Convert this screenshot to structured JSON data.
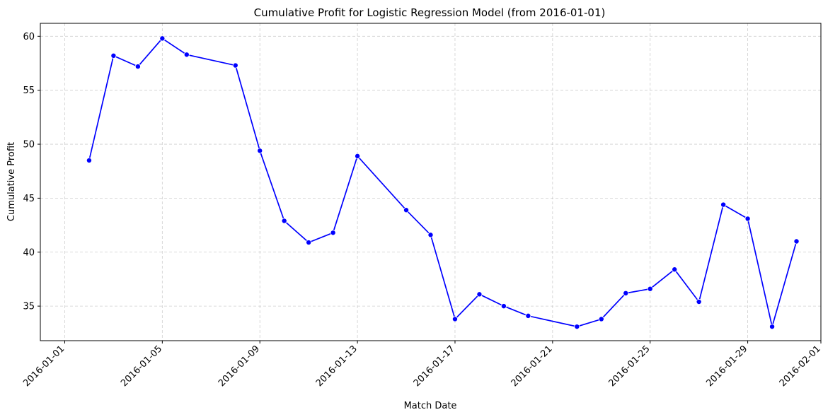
{
  "chart_data": {
    "type": "line",
    "title": "Cumulative Profit for Logistic Regression Model (from 2016-01-01)",
    "xlabel": "Match Date",
    "ylabel": "Cumulative Profit",
    "x_tick_labels": [
      "2016-01-01",
      "2016-01-05",
      "2016-01-09",
      "2016-01-13",
      "2016-01-17",
      "2016-01-21",
      "2016-01-25",
      "2016-01-29",
      "2016-02-01"
    ],
    "y_ticks": [
      35,
      40,
      45,
      50,
      55,
      60
    ],
    "xlim": [
      "2015-12-31",
      "2016-02-01"
    ],
    "ylim": [
      31.8,
      61.2
    ],
    "grid": true,
    "color": "#0000ff",
    "series": [
      {
        "x": [
          "2016-01-02",
          "2016-01-03",
          "2016-01-04",
          "2016-01-05",
          "2016-01-06",
          "2016-01-08",
          "2016-01-09",
          "2016-01-10",
          "2016-01-11",
          "2016-01-12",
          "2016-01-13",
          "2016-01-15",
          "2016-01-16",
          "2016-01-17",
          "2016-01-18",
          "2016-01-19",
          "2016-01-20",
          "2016-01-22",
          "2016-01-23",
          "2016-01-24",
          "2016-01-25",
          "2016-01-26",
          "2016-01-27",
          "2016-01-28",
          "2016-01-29",
          "2016-01-30",
          "2016-01-31"
        ],
        "values": [
          48.5,
          58.2,
          57.2,
          59.8,
          58.3,
          57.3,
          49.4,
          42.9,
          40.9,
          41.8,
          48.9,
          43.9,
          41.6,
          33.8,
          36.1,
          35.0,
          34.1,
          33.1,
          33.8,
          36.2,
          36.6,
          38.4,
          35.4,
          44.4,
          43.1,
          33.1,
          41.0
        ]
      }
    ]
  }
}
